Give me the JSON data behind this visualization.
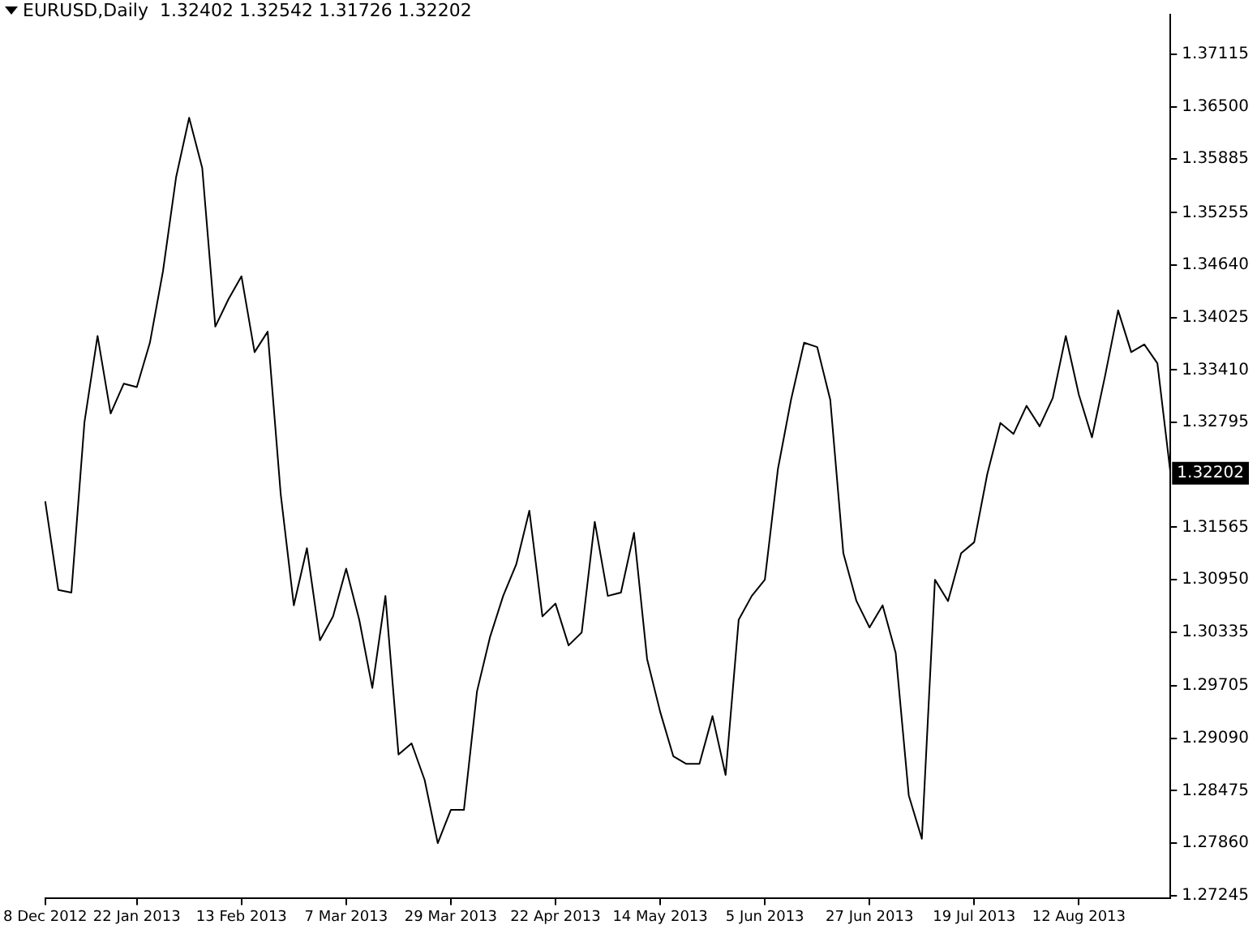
{
  "chart_data": {
    "type": "line",
    "title": "EURUSD,Daily  1.32402 1.32542 1.31726 1.32202",
    "categories": [
      "8 Dec 2012",
      null,
      null,
      null,
      null,
      null,
      null,
      "22 Jan 2013",
      null,
      null,
      null,
      null,
      null,
      null,
      null,
      "13 Feb 2013",
      null,
      null,
      null,
      null,
      null,
      null,
      null,
      "7 Mar 2013",
      null,
      null,
      null,
      null,
      null,
      null,
      null,
      "29 Mar 2013",
      null,
      null,
      null,
      null,
      null,
      null,
      null,
      "22 Apr 2013",
      null,
      null,
      null,
      null,
      null,
      null,
      null,
      "14 May 2013",
      null,
      null,
      null,
      null,
      null,
      null,
      null,
      "5 Jun 2013",
      null,
      null,
      null,
      null,
      null,
      null,
      null,
      "27 Jun 2013",
      null,
      null,
      null,
      null,
      null,
      null,
      null,
      "19 Jul 2013",
      null,
      null,
      null,
      null,
      null,
      null,
      null,
      "12 Aug 2013",
      null,
      null,
      null,
      null,
      null,
      null,
      null
    ],
    "series": [
      {
        "color": "#000000",
        "values": [
          1.3187,
          1.3083,
          1.308,
          1.328,
          1.3381,
          1.329,
          1.3325,
          1.3321,
          1.3373,
          1.3457,
          1.3567,
          1.3637,
          1.3578,
          1.3392,
          1.3424,
          1.3451,
          1.3362,
          1.3386,
          1.3195,
          1.3065,
          1.3132,
          1.3024,
          1.3052,
          1.3108,
          1.3048,
          1.2968,
          1.3076,
          1.289,
          1.2903,
          1.286,
          1.2786,
          1.2825,
          1.2825,
          1.2964,
          1.3028,
          1.3076,
          1.3113,
          1.3176,
          1.3052,
          1.3067,
          1.3018,
          1.3033,
          1.3163,
          1.3076,
          1.308,
          1.315,
          1.3002,
          1.294,
          1.2888,
          1.2879,
          1.2879,
          1.2935,
          1.2866,
          1.3048,
          1.3076,
          1.3095,
          1.3225,
          1.3306,
          1.3373,
          1.3368,
          1.3306,
          1.3126,
          1.307,
          1.3039,
          1.3065,
          1.3009,
          1.2842,
          1.2791,
          1.3095,
          1.307,
          1.3126,
          1.3139,
          1.3219,
          1.3279,
          1.3266,
          1.3299,
          1.3275,
          1.3308,
          1.3381,
          1.3312,
          1.3262,
          1.3334,
          1.3411,
          1.3362,
          1.3371,
          1.3349,
          1.322
        ]
      }
    ],
    "ylim": [
      1.2721,
      1.3758
    ],
    "yticks": [
      1.27245,
      {
        "value": 1.2786,
        "label": "1.27860"
      },
      1.28475,
      {
        "value": 1.2909,
        "label": "1.29090"
      },
      1.29705,
      1.30335,
      {
        "value": 1.3095,
        "label": "1.30950"
      },
      1.31565,
      1.32795,
      {
        "value": 1.3341,
        "label": "1.33410"
      },
      1.34025,
      {
        "value": 1.3464,
        "label": "1.34640"
      },
      1.35255,
      1.35885,
      {
        "value": 1.365,
        "label": "1.36500"
      },
      1.37115
    ],
    "annotations": [
      "1.32202"
    ]
  }
}
